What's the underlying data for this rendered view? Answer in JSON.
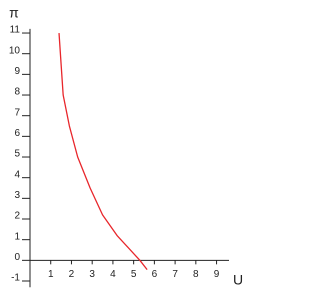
{
  "chart_data": {
    "type": "line",
    "xlabel": "U",
    "ylabel": "π",
    "x": [
      1.4,
      1.6,
      1.9,
      2.3,
      2.9,
      3.5,
      4.2,
      5.3,
      5.65
    ],
    "series": [
      {
        "color": "#e8262b",
        "values": [
          11,
          8,
          6.5,
          5,
          3.5,
          2.2,
          1.2,
          0,
          -0.45
        ]
      }
    ],
    "xlim": [
      0,
      9.6
    ],
    "ylim": [
      -1.3,
      11.2
    ],
    "xticks": [
      1,
      2,
      3,
      4,
      5,
      6,
      7,
      8,
      9
    ],
    "yticks": [
      -1,
      0,
      1,
      2,
      3,
      4,
      5,
      6,
      7,
      8,
      9,
      10,
      11
    ],
    "grid": false
  }
}
